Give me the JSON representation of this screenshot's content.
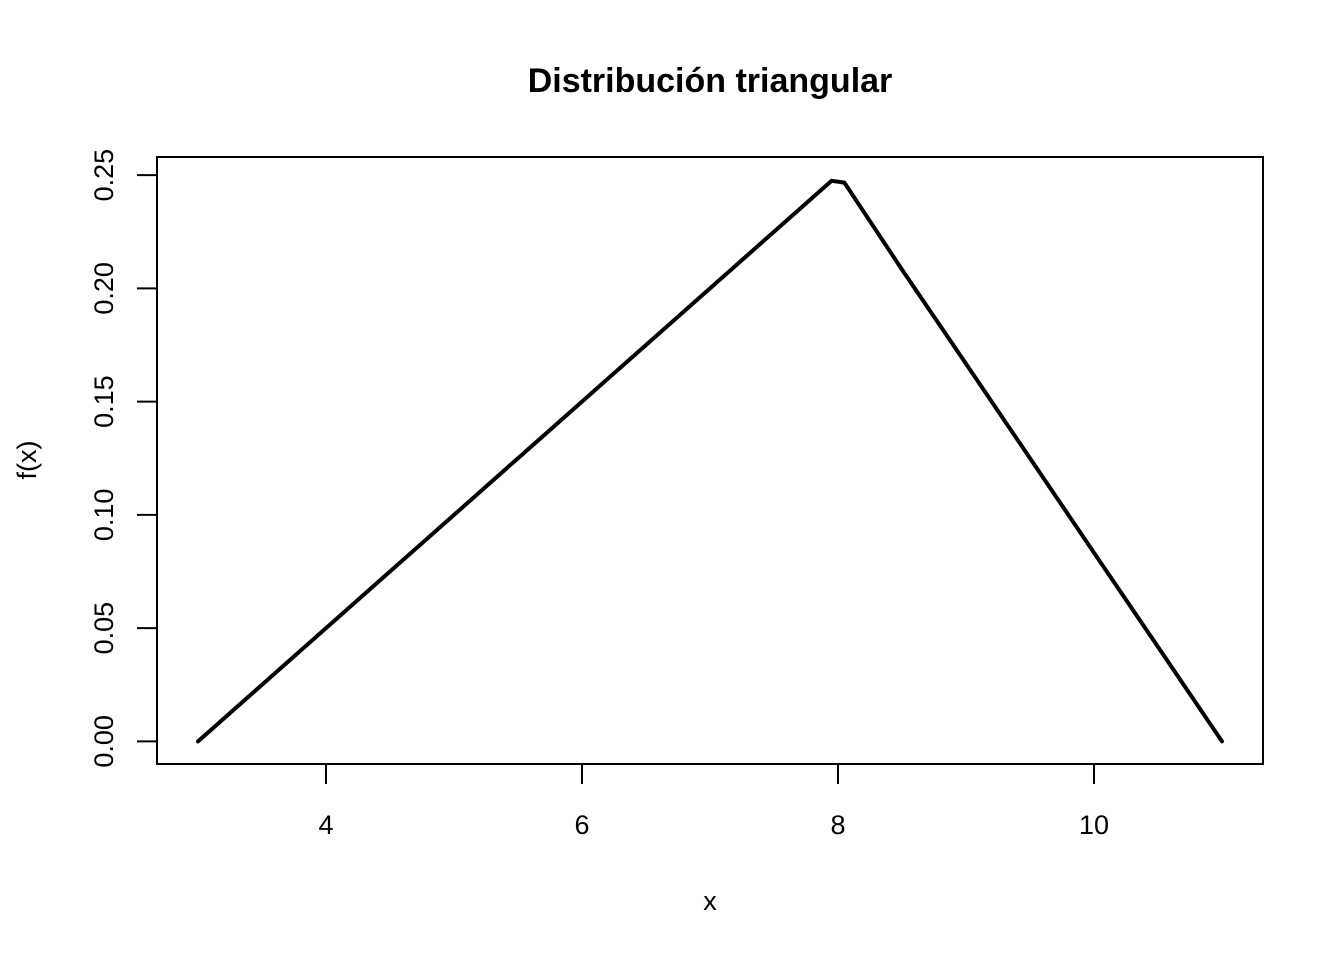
{
  "chart_data": {
    "type": "line",
    "title": "Distribución triangular",
    "xlabel": "x",
    "ylabel": "f(x)",
    "xlim": [
      2.68,
      11.32
    ],
    "ylim": [
      -0.01,
      0.258
    ],
    "x_ticks": [
      4,
      6,
      8,
      10
    ],
    "x_tick_labels": [
      "4",
      "6",
      "8",
      "10"
    ],
    "y_ticks": [
      0.0,
      0.05,
      0.1,
      0.15,
      0.2,
      0.25
    ],
    "y_tick_labels": [
      "0.00",
      "0.05",
      "0.10",
      "0.15",
      "0.20",
      "0.25"
    ],
    "grid": false,
    "legend": "none",
    "line_color": "#000000",
    "series": [
      {
        "x": [
          3.0,
          3.5,
          4.0,
          4.5,
          5.0,
          5.5,
          6.0,
          6.5,
          7.0,
          7.5,
          7.95,
          8.05,
          8.5,
          9.0,
          9.5,
          10.0,
          10.5,
          11.0
        ],
        "values": [
          0.0,
          0.025,
          0.05,
          0.075,
          0.1,
          0.125,
          0.15,
          0.175,
          0.2,
          0.225,
          0.2475,
          0.2467,
          0.2083,
          0.1667,
          0.125,
          0.0833,
          0.0417,
          0.0
        ]
      }
    ]
  }
}
